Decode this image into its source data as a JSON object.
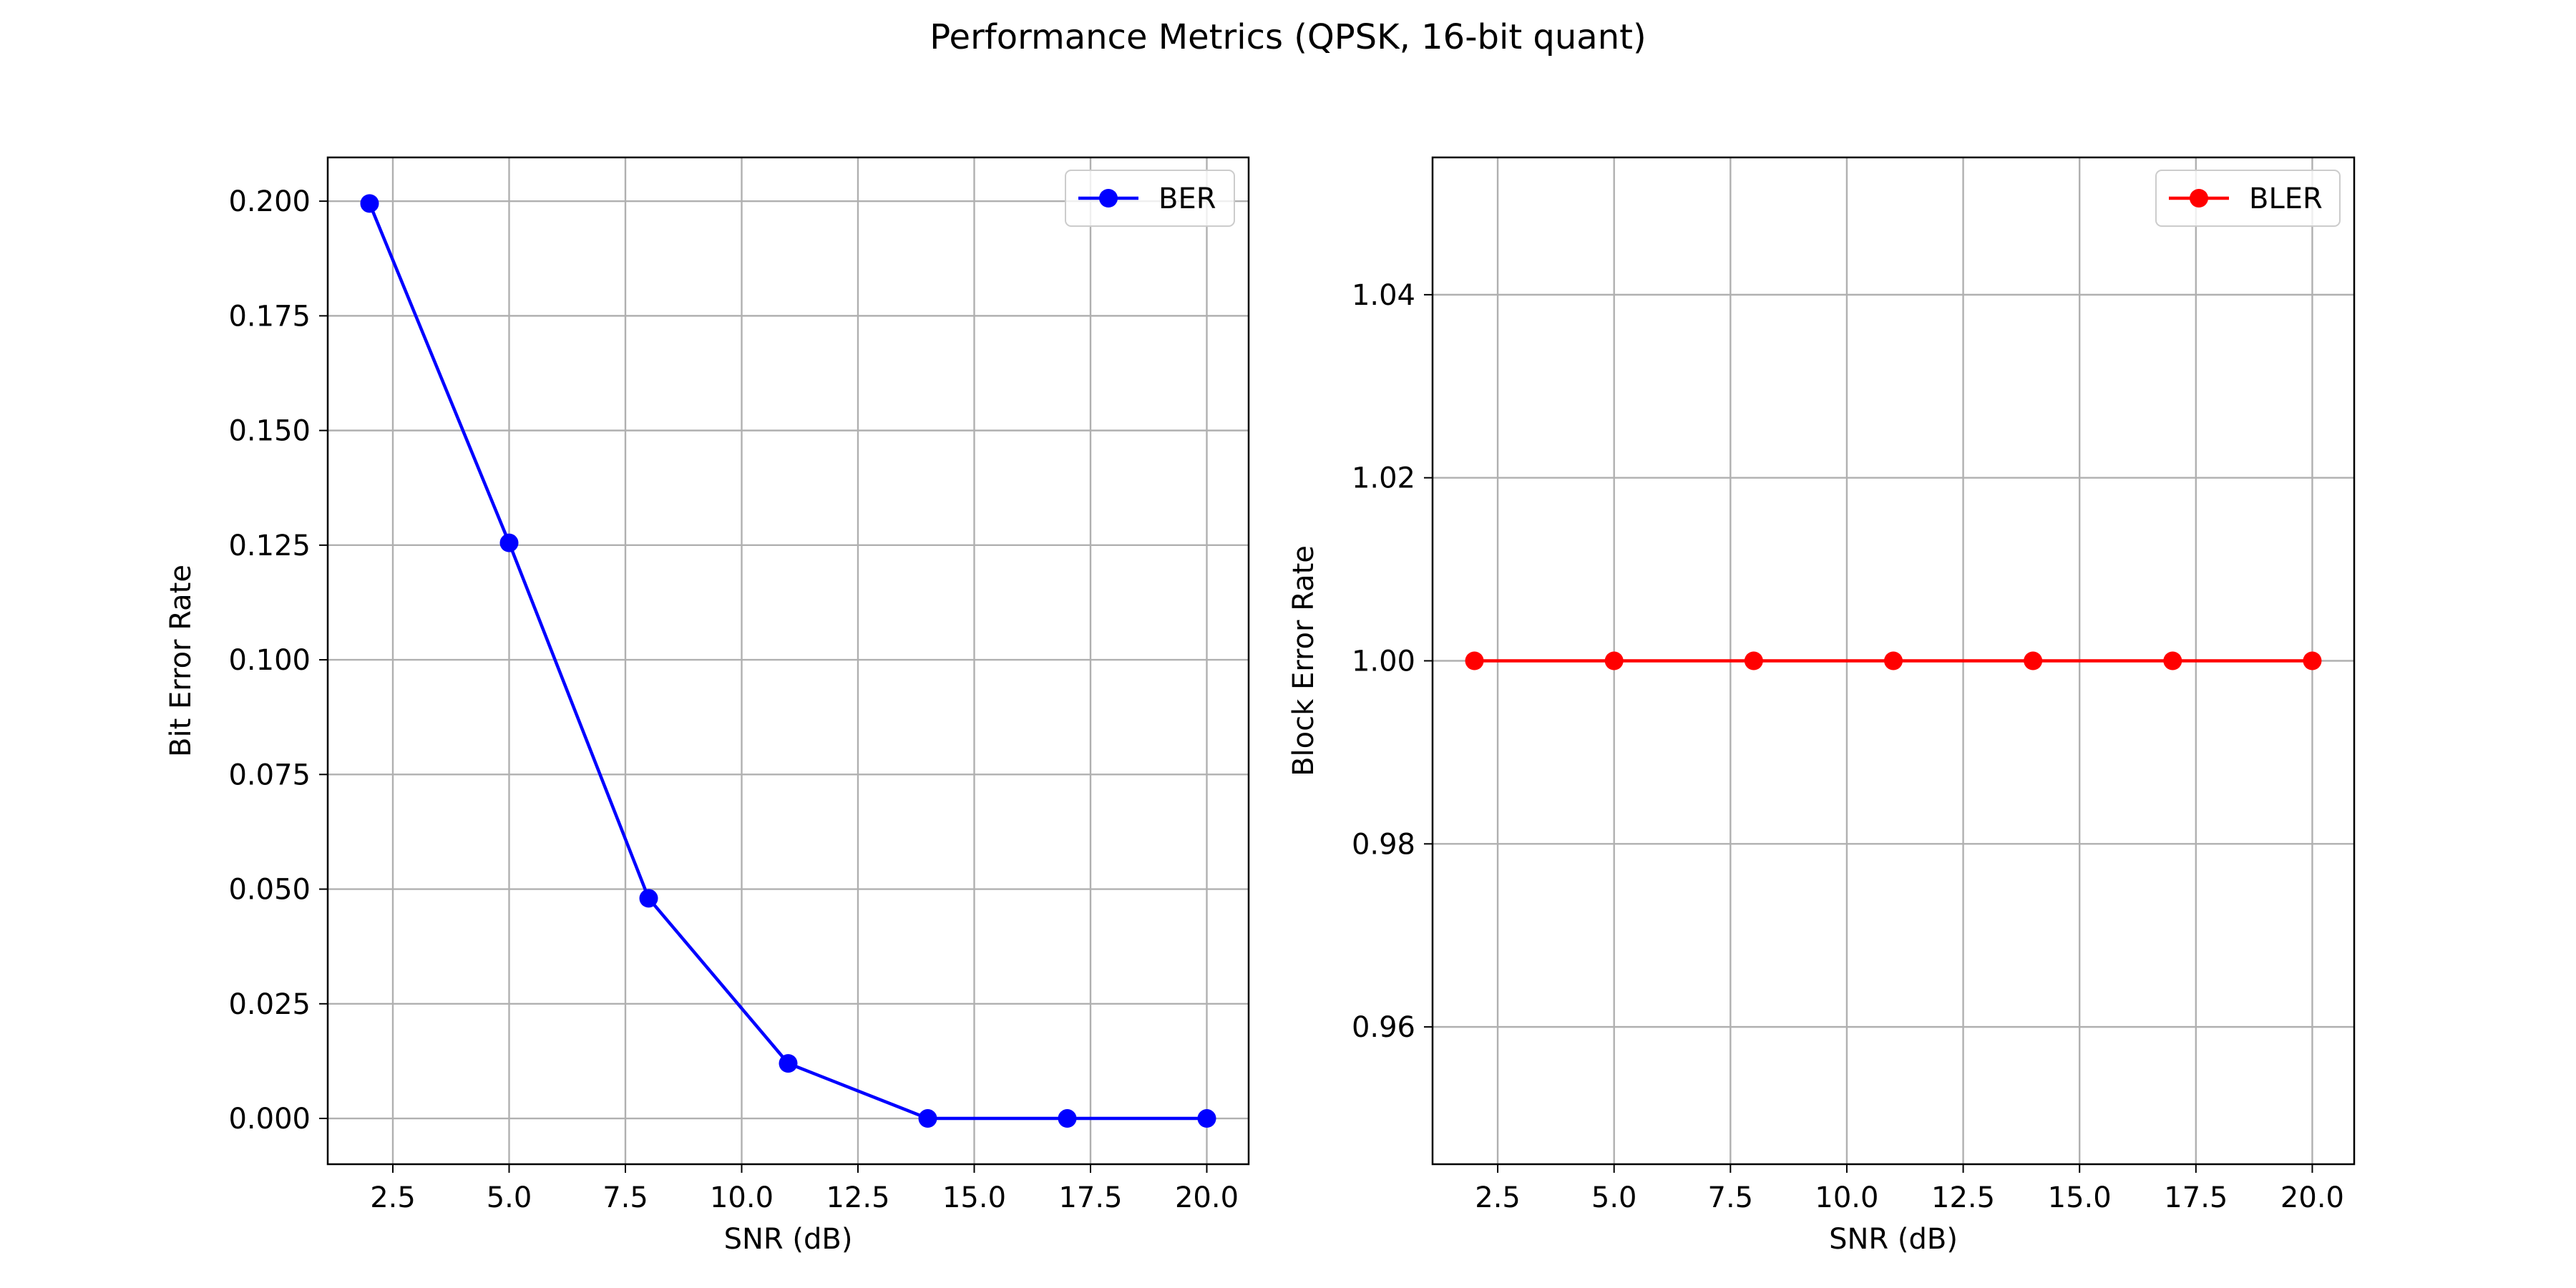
{
  "figure": {
    "title": "Performance Metrics (QPSK, 16-bit quant)"
  },
  "chart_data": [
    {
      "type": "line",
      "id": "ber",
      "x": [
        2,
        5,
        8,
        11,
        14,
        17,
        20
      ],
      "series": [
        {
          "name": "BER",
          "values": [
            0.1995,
            0.1255,
            0.048,
            0.012,
            0.0,
            0.0,
            0.0
          ],
          "color": "#0000ff",
          "marker": "circle"
        }
      ],
      "xlabel": "SNR (dB)",
      "ylabel": "Bit Error Rate",
      "xlim": [
        1.1,
        20.9
      ],
      "ylim": [
        -0.00998,
        0.20954
      ],
      "xticks": [
        2.5,
        5.0,
        7.5,
        10.0,
        12.5,
        15.0,
        17.5,
        20.0
      ],
      "xtick_labels": [
        "2.5",
        "5.0",
        "7.5",
        "10.0",
        "12.5",
        "15.0",
        "17.5",
        "20.0"
      ],
      "yticks": [
        0.0,
        0.025,
        0.05,
        0.075,
        0.1,
        0.125,
        0.15,
        0.175,
        0.2
      ],
      "ytick_labels": [
        "0.000",
        "0.025",
        "0.050",
        "0.075",
        "0.100",
        "0.125",
        "0.150",
        "0.175",
        "0.200"
      ],
      "grid": true,
      "legend": "top-right"
    },
    {
      "type": "line",
      "id": "bler",
      "x": [
        2,
        5,
        8,
        11,
        14,
        17,
        20
      ],
      "series": [
        {
          "name": "BLER",
          "values": [
            1.0,
            1.0,
            1.0,
            1.0,
            1.0,
            1.0,
            1.0
          ],
          "color": "#ff0000",
          "marker": "circle"
        }
      ],
      "xlabel": "SNR (dB)",
      "ylabel": "Block Error Rate",
      "xlim": [
        1.1,
        20.9
      ],
      "ylim": [
        0.945,
        1.055
      ],
      "xticks": [
        2.5,
        5.0,
        7.5,
        10.0,
        12.5,
        15.0,
        17.5,
        20.0
      ],
      "xtick_labels": [
        "2.5",
        "5.0",
        "7.5",
        "10.0",
        "12.5",
        "15.0",
        "17.5",
        "20.0"
      ],
      "yticks": [
        0.96,
        0.98,
        1.0,
        1.02,
        1.04
      ],
      "ytick_labels": [
        "0.96",
        "0.98",
        "1.00",
        "1.02",
        "1.04"
      ],
      "grid": true,
      "legend": "top-right"
    }
  ]
}
